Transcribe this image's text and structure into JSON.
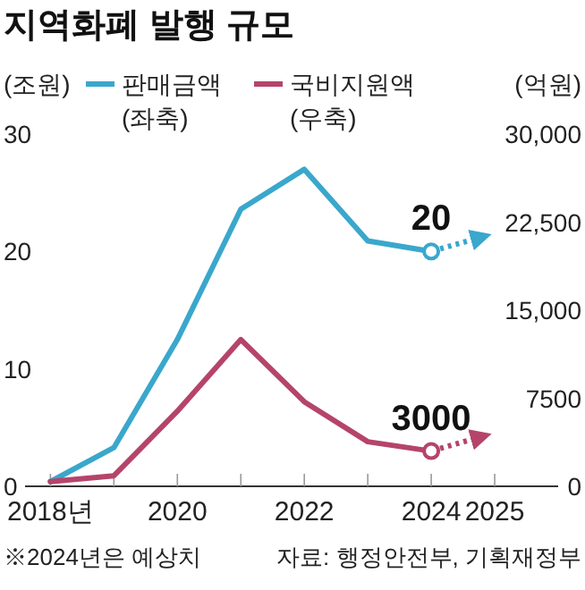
{
  "chart_data": {
    "type": "line",
    "title": "지역화폐 발행 규모",
    "ylabel": "(조원)",
    "y2label": "(억원)",
    "x": [
      2018,
      2019,
      2020,
      2021,
      2022,
      2023,
      2024
    ],
    "series": [
      {
        "name": "판매금액 (좌축)",
        "color": "#3aa7cc",
        "values": [
          0.4,
          3.3,
          12.5,
          23.6,
          27,
          20.9,
          20
        ],
        "value_labels": [
          null,
          null,
          null,
          null,
          null,
          null,
          "20"
        ]
      },
      {
        "name": "국비지원액 (우축)",
        "color": "#b5446b",
        "axis": "y2",
        "values": [
          400,
          900,
          6400,
          12500,
          7200,
          3800,
          3000
        ],
        "value_labels": [
          null,
          null,
          null,
          null,
          null,
          null,
          "3000"
        ]
      },
      {
        "type": "scatter",
        "color": "#3aa7cc",
        "marker": "circle",
        "values": [
          null,
          null,
          null,
          null,
          null,
          null,
          20
        ]
      },
      {
        "type": "scatter",
        "color": "#b5446b",
        "axis": "y2",
        "marker": "circle",
        "values": [
          null,
          null,
          null,
          null,
          null,
          null,
          3000
        ]
      }
    ],
    "xlim": [
      2017.6,
      2026
    ],
    "xticks": [
      {
        "value": 2018,
        "label": "2018년"
      },
      {
        "value": 2019,
        "label": null
      },
      2020,
      {
        "value": 2021,
        "label": null
      },
      2022,
      {
        "value": 2023,
        "label": null
      },
      2024,
      2025
    ],
    "ylim": [
      0,
      30
    ],
    "yticks": [
      0,
      10,
      20,
      30
    ],
    "y2lim": [
      0,
      30000
    ],
    "y2ticks": [
      0,
      7500,
      {
        "value": 15000,
        "label": "15,000"
      },
      {
        "value": 22500,
        "label": "22,500"
      },
      {
        "value": 30000,
        "label": "30,000"
      }
    ],
    "legend": "top",
    "grid": false,
    "marker": "none",
    "line_style": "solid",
    "annotations": [
      "※2024년은 예상치",
      "자료: 행정안전부, 기획재정부"
    ]
  }
}
